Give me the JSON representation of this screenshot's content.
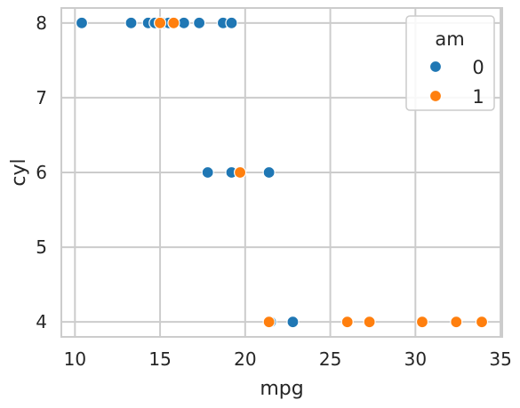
{
  "chart_data": {
    "type": "scatter",
    "title": "",
    "xlabel": "mpg",
    "ylabel": "cyl",
    "xlim": [
      9.2,
      35.1
    ],
    "ylim": [
      3.8,
      8.2
    ],
    "xticks": [
      10,
      15,
      20,
      25,
      30,
      35
    ],
    "yticks": [
      4,
      5,
      6,
      7,
      8
    ],
    "grid": true,
    "legend": {
      "title": "am",
      "placement": "top-right"
    },
    "series": [
      {
        "name": "0",
        "color": "#1f77b4",
        "points": [
          [
            10.4,
            8
          ],
          [
            13.3,
            8
          ],
          [
            14.3,
            8
          ],
          [
            14.7,
            8
          ],
          [
            15.2,
            8
          ],
          [
            15.5,
            8
          ],
          [
            16.4,
            8
          ],
          [
            17.3,
            8
          ],
          [
            18.7,
            8
          ],
          [
            19.2,
            8
          ],
          [
            17.8,
            6
          ],
          [
            19.2,
            6
          ],
          [
            21.4,
            6
          ],
          [
            21.5,
            4
          ],
          [
            22.8,
            4
          ]
        ]
      },
      {
        "name": "1",
        "color": "#ff7f0e",
        "points": [
          [
            15.0,
            8
          ],
          [
            15.8,
            8
          ],
          [
            19.7,
            6
          ],
          [
            21.4,
            4
          ],
          [
            26.0,
            4
          ],
          [
            27.3,
            4
          ],
          [
            30.4,
            4
          ],
          [
            32.4,
            4
          ],
          [
            33.9,
            4
          ]
        ]
      }
    ]
  }
}
